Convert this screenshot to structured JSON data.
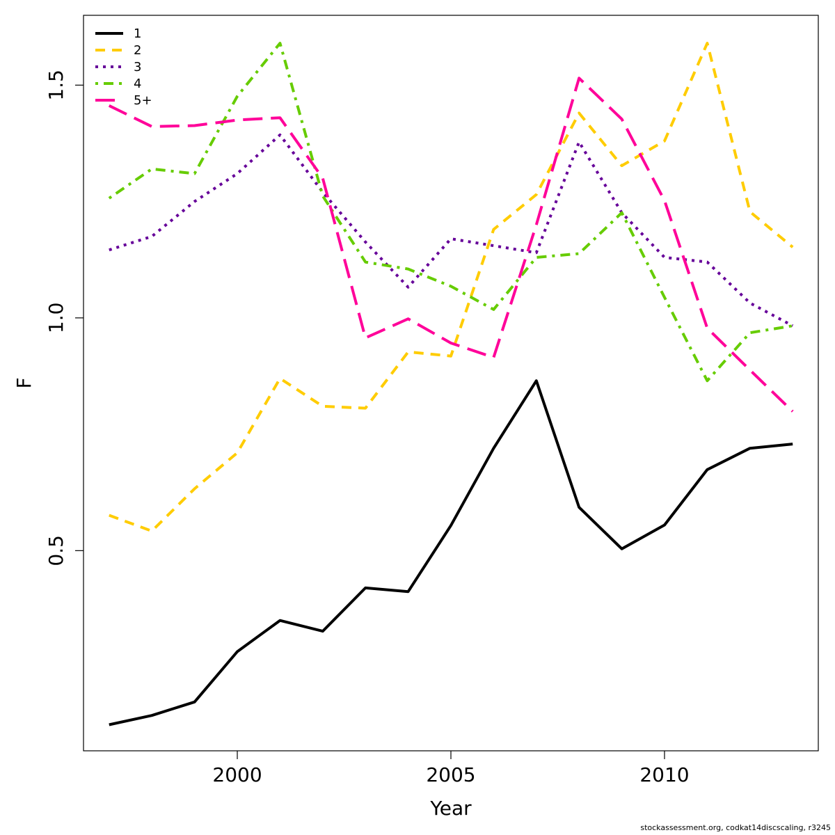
{
  "chart_data": {
    "type": "line",
    "title": "",
    "xlabel": "Year",
    "ylabel": "F",
    "xlim": [
      1996.4,
      2013.6
    ],
    "ylim": [
      0.07,
      1.65
    ],
    "x_ticks": [
      2000,
      2005,
      2010
    ],
    "x_tick_labels": [
      "2000",
      "2005",
      "2010"
    ],
    "y_ticks": [
      0.5,
      1.0,
      1.5
    ],
    "y_tick_labels": [
      "0.5",
      "1.0",
      "1.5"
    ],
    "grid": false,
    "legend_position": "top-left",
    "x": [
      1997,
      1998,
      1999,
      2000,
      2001,
      2002,
      2003,
      2004,
      2005,
      2006,
      2007,
      2008,
      2009,
      2010,
      2011,
      2012,
      2013
    ],
    "series": [
      {
        "name": "1",
        "color": "#000000",
        "dash": "solid",
        "values": [
          0.126,
          0.146,
          0.175,
          0.283,
          0.35,
          0.327,
          0.42,
          0.412,
          0.554,
          0.72,
          0.865,
          0.593,
          0.504,
          0.555,
          0.674,
          0.72,
          0.729
        ]
      },
      {
        "name": "2",
        "color": "#FFCC00",
        "dash": "dashed",
        "values": [
          0.576,
          0.542,
          0.633,
          0.71,
          0.87,
          0.81,
          0.806,
          0.927,
          0.918,
          1.19,
          1.265,
          1.44,
          1.327,
          1.38,
          1.59,
          1.228,
          1.152
        ]
      },
      {
        "name": "3",
        "color": "#660099",
        "dash": "dotted",
        "values": [
          1.146,
          1.175,
          1.25,
          1.31,
          1.393,
          1.27,
          1.163,
          1.066,
          1.17,
          1.155,
          1.14,
          1.378,
          1.226,
          1.13,
          1.12,
          1.032,
          0.983
        ]
      },
      {
        "name": "4",
        "color": "#66CC00",
        "dash": "dotdash",
        "values": [
          1.257,
          1.32,
          1.31,
          1.476,
          1.59,
          1.262,
          1.12,
          1.105,
          1.068,
          1.018,
          1.13,
          1.138,
          1.226,
          1.044,
          0.865,
          0.968,
          0.983
        ]
      },
      {
        "name": "5+",
        "color": "#FF0099",
        "dash": "longdash",
        "values": [
          1.456,
          1.411,
          1.413,
          1.425,
          1.43,
          1.3,
          0.957,
          0.998,
          0.946,
          0.915,
          1.2,
          1.515,
          1.427,
          1.252,
          0.978,
          0.888,
          0.799
        ]
      }
    ]
  },
  "footer": {
    "text": "stockassessment.org, codkat14discscaling, r3245"
  }
}
